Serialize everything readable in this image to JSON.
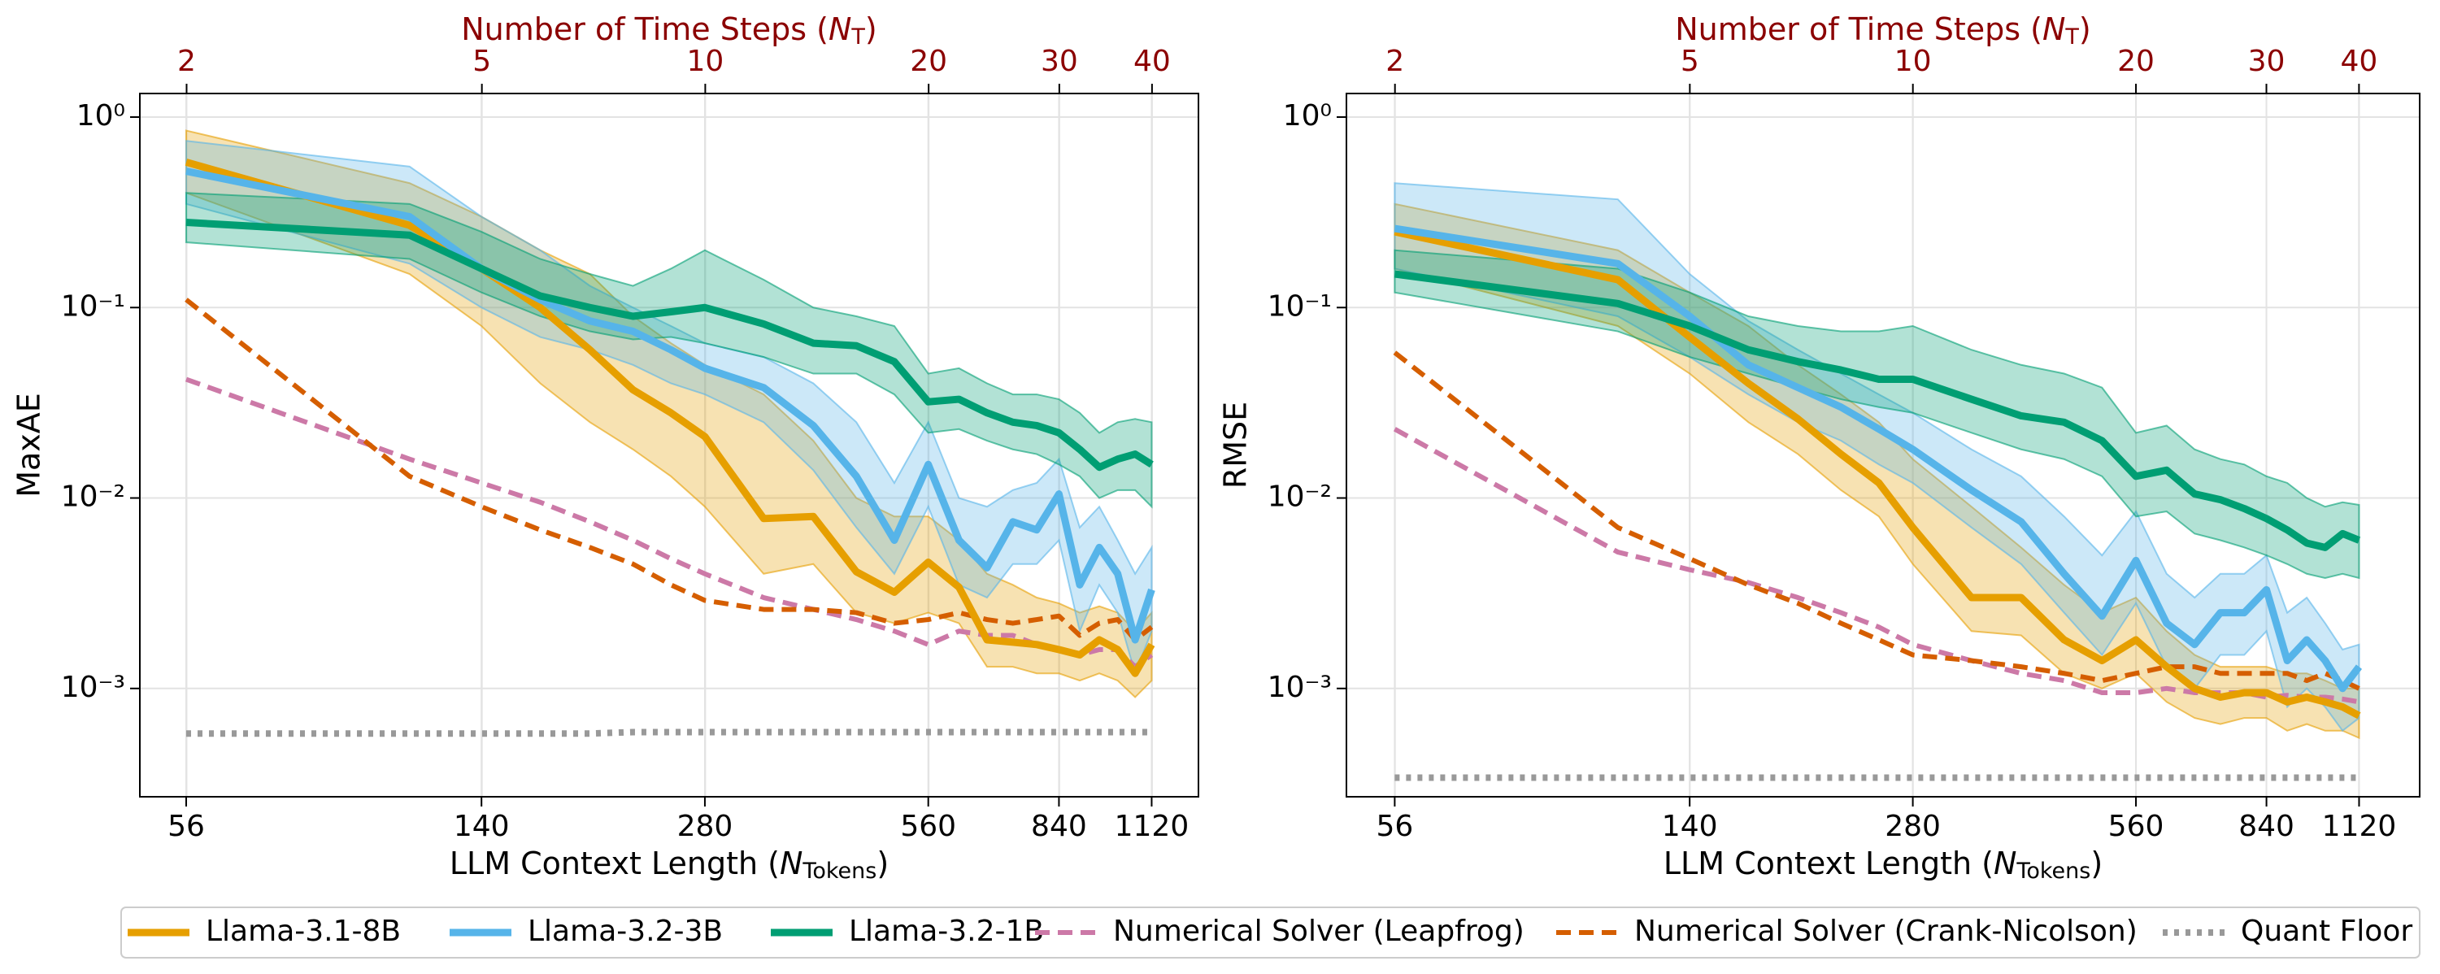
{
  "chart_data": [
    {
      "type": "line",
      "xscale": "log",
      "yscale": "log",
      "grid": true,
      "xlabel": {
        "text": "LLM Context Length (",
        "var": "N",
        "sub": "Tokens",
        "end": ")"
      },
      "x2label": {
        "text": "Number of Time Steps (",
        "var": "N",
        "sub": "T",
        "end": ")"
      },
      "ylabel": "MaxAE",
      "xlim": [
        48.5,
        1295
      ],
      "xticks": [
        56,
        140,
        280,
        560,
        840,
        1120
      ],
      "x2lim": [
        1.73,
        46.2
      ],
      "x2ticks": [
        2,
        5,
        10,
        20,
        30,
        40
      ],
      "ylim": [
        0.00027,
        1.33
      ],
      "yticks": [
        {
          "value": 0.001,
          "label": "10⁻³"
        },
        {
          "value": 0.01,
          "label": "10⁻²"
        },
        {
          "value": 0.1,
          "label": "10⁻¹"
        },
        {
          "value": 1,
          "label": "10⁰"
        }
      ],
      "legend": {
        "loc": "lower center"
      },
      "x": [
        56,
        112,
        140,
        168,
        196,
        224,
        252,
        280,
        336,
        392,
        448,
        504,
        560,
        616,
        672,
        728,
        784,
        840,
        896,
        952,
        1008,
        1064,
        1120
      ],
      "series": [
        {
          "name": "Llama-3.1-8B",
          "color": "#E69F00",
          "style": "solid",
          "values": [
            0.58,
            0.27,
            0.16,
            0.1,
            0.06,
            0.037,
            0.028,
            0.021,
            0.0078,
            0.008,
            0.0041,
            0.0032,
            0.0046,
            0.0034,
            0.0018,
            0.00175,
            0.0017,
            0.0016,
            0.0015,
            0.0018,
            0.0016,
            0.0012,
            0.0017
          ],
          "upper": [
            0.85,
            0.45,
            0.3,
            0.2,
            0.15,
            0.09,
            0.065,
            0.05,
            0.035,
            0.02,
            0.01,
            0.008,
            0.008,
            0.006,
            0.004,
            0.0035,
            0.003,
            0.0028,
            0.0025,
            0.0027,
            0.0025,
            0.002,
            0.0025
          ],
          "lower": [
            0.4,
            0.15,
            0.08,
            0.04,
            0.025,
            0.018,
            0.013,
            0.009,
            0.004,
            0.0045,
            0.0025,
            0.0022,
            0.0025,
            0.0022,
            0.0013,
            0.0013,
            0.0012,
            0.0012,
            0.0011,
            0.0012,
            0.0011,
            0.0009,
            0.0011
          ]
        },
        {
          "name": "Llama-3.2-3B",
          "color": "#56B4E9",
          "style": "solid",
          "values": [
            0.52,
            0.3,
            0.16,
            0.11,
            0.085,
            0.075,
            0.06,
            0.048,
            0.038,
            0.024,
            0.013,
            0.006,
            0.015,
            0.006,
            0.0043,
            0.0075,
            0.0068,
            0.0105,
            0.0035,
            0.0055,
            0.004,
            0.0018,
            0.0033
          ],
          "upper": [
            0.75,
            0.55,
            0.3,
            0.2,
            0.13,
            0.1,
            0.08,
            0.065,
            0.055,
            0.04,
            0.025,
            0.012,
            0.025,
            0.01,
            0.009,
            0.011,
            0.012,
            0.016,
            0.007,
            0.009,
            0.006,
            0.004,
            0.0055
          ],
          "lower": [
            0.35,
            0.17,
            0.1,
            0.07,
            0.06,
            0.05,
            0.04,
            0.035,
            0.025,
            0.014,
            0.007,
            0.004,
            0.009,
            0.0035,
            0.003,
            0.0045,
            0.0045,
            0.006,
            0.002,
            0.0035,
            0.0025,
            0.0012,
            0.002
          ]
        },
        {
          "name": "Llama-3.2-1B",
          "color": "#009E73",
          "style": "solid",
          "values": [
            0.28,
            0.24,
            0.16,
            0.115,
            0.1,
            0.09,
            0.095,
            0.1,
            0.082,
            0.065,
            0.063,
            0.052,
            0.032,
            0.033,
            0.028,
            0.025,
            0.024,
            0.022,
            0.018,
            0.0145,
            0.016,
            0.017,
            0.015
          ],
          "upper": [
            0.4,
            0.35,
            0.25,
            0.18,
            0.15,
            0.13,
            0.16,
            0.2,
            0.14,
            0.1,
            0.09,
            0.08,
            0.045,
            0.048,
            0.04,
            0.035,
            0.035,
            0.033,
            0.028,
            0.022,
            0.025,
            0.026,
            0.025
          ],
          "lower": [
            0.22,
            0.18,
            0.12,
            0.09,
            0.075,
            0.068,
            0.07,
            0.065,
            0.055,
            0.045,
            0.045,
            0.035,
            0.022,
            0.023,
            0.02,
            0.018,
            0.017,
            0.015,
            0.013,
            0.01,
            0.011,
            0.011,
            0.009
          ]
        },
        {
          "name": "Numerical Solver (Leapfrog)",
          "color": "#CC79A7",
          "style": "dashed",
          "values": [
            0.042,
            0.016,
            0.012,
            0.0095,
            0.0075,
            0.006,
            0.0048,
            0.004,
            0.003,
            0.0026,
            0.0023,
            0.002,
            0.0017,
            0.002,
            0.0019,
            0.0019,
            0.0017,
            0.0016,
            0.0015,
            0.0016,
            0.0016,
            0.0013,
            0.0015
          ]
        },
        {
          "name": "Numerical Solver (Crank-Nicolson)",
          "color": "#D55E00",
          "style": "dashed",
          "values": [
            0.11,
            0.013,
            0.009,
            0.0068,
            0.0055,
            0.0045,
            0.0035,
            0.0029,
            0.0026,
            0.0026,
            0.0025,
            0.0022,
            0.0023,
            0.0025,
            0.0023,
            0.0022,
            0.0023,
            0.0024,
            0.0019,
            0.0022,
            0.0023,
            0.0018,
            0.0021
          ]
        },
        {
          "name": "Quant Floor",
          "color": "#999999",
          "style": "dotted",
          "values": [
            0.00058,
            0.00058,
            0.00058,
            0.00058,
            0.00058,
            0.00059,
            0.00059,
            0.00059,
            0.00059,
            0.00059,
            0.00059,
            0.00059,
            0.00059,
            0.00059,
            0.00059,
            0.00059,
            0.00059,
            0.00059,
            0.00059,
            0.00059,
            0.00059,
            0.00059,
            0.00059
          ]
        }
      ]
    },
    {
      "type": "line",
      "xscale": "log",
      "yscale": "log",
      "grid": true,
      "xlabel": {
        "text": "LLM Context Length (",
        "var": "N",
        "sub": "Tokens",
        "end": ")"
      },
      "x2label": {
        "text": "Number of Time Steps (",
        "var": "N",
        "sub": "T",
        "end": ")"
      },
      "ylabel": "RMSE",
      "xlim": [
        48.2,
        1352
      ],
      "xticks": [
        56,
        140,
        280,
        560,
        840,
        1120
      ],
      "x2lim": [
        1.72,
        48.3
      ],
      "x2ticks": [
        2,
        5,
        10,
        20,
        30,
        40
      ],
      "ylim": [
        0.00027,
        1.33
      ],
      "yticks": [
        {
          "value": 0.001,
          "label": "10⁻³"
        },
        {
          "value": 0.01,
          "label": "10⁻²"
        },
        {
          "value": 0.1,
          "label": "10⁻¹"
        },
        {
          "value": 1,
          "label": "10⁰"
        }
      ],
      "x": [
        56,
        112,
        140,
        168,
        196,
        224,
        252,
        280,
        336,
        392,
        448,
        504,
        560,
        616,
        672,
        728,
        784,
        840,
        896,
        952,
        1008,
        1064,
        1120
      ],
      "series": [
        {
          "name": "Llama-3.1-8B",
          "color": "#E69F00",
          "style": "solid",
          "values": [
            0.25,
            0.14,
            0.07,
            0.04,
            0.026,
            0.017,
            0.012,
            0.007,
            0.003,
            0.003,
            0.0018,
            0.0014,
            0.0018,
            0.0013,
            0.001,
            0.0009,
            0.00095,
            0.00095,
            0.00085,
            0.0009,
            0.00085,
            0.0008,
            0.00072
          ],
          "upper": [
            0.35,
            0.2,
            0.12,
            0.08,
            0.05,
            0.035,
            0.025,
            0.016,
            0.009,
            0.0055,
            0.0035,
            0.0025,
            0.003,
            0.002,
            0.0015,
            0.0013,
            0.0013,
            0.0013,
            0.0012,
            0.0012,
            0.0011,
            0.001,
            0.001
          ],
          "lower": [
            0.16,
            0.08,
            0.045,
            0.025,
            0.017,
            0.011,
            0.008,
            0.0045,
            0.002,
            0.0019,
            0.0012,
            0.001,
            0.0012,
            0.00085,
            0.0007,
            0.00065,
            0.0007,
            0.0007,
            0.0006,
            0.00065,
            0.0006,
            0.0006,
            0.00055
          ]
        },
        {
          "name": "Llama-3.2-3B",
          "color": "#56B4E9",
          "style": "solid",
          "values": [
            0.26,
            0.17,
            0.09,
            0.05,
            0.038,
            0.03,
            0.023,
            0.018,
            0.011,
            0.0075,
            0.004,
            0.0024,
            0.0047,
            0.0022,
            0.0017,
            0.0025,
            0.0025,
            0.0033,
            0.0014,
            0.0018,
            0.0014,
            0.001,
            0.0013
          ],
          "upper": [
            0.45,
            0.37,
            0.15,
            0.085,
            0.06,
            0.045,
            0.035,
            0.028,
            0.018,
            0.013,
            0.008,
            0.005,
            0.0085,
            0.004,
            0.003,
            0.004,
            0.004,
            0.005,
            0.0025,
            0.003,
            0.0022,
            0.0016,
            0.0017
          ],
          "lower": [
            0.16,
            0.09,
            0.055,
            0.035,
            0.025,
            0.02,
            0.015,
            0.012,
            0.007,
            0.0045,
            0.0025,
            0.0015,
            0.0028,
            0.0013,
            0.001,
            0.0015,
            0.0015,
            0.002,
            0.0008,
            0.001,
            0.0008,
            0.0006,
            0.0007
          ]
        },
        {
          "name": "Llama-3.2-1B",
          "color": "#009E73",
          "style": "solid",
          "values": [
            0.15,
            0.105,
            0.08,
            0.06,
            0.052,
            0.047,
            0.042,
            0.042,
            0.033,
            0.027,
            0.025,
            0.02,
            0.013,
            0.014,
            0.0105,
            0.0098,
            0.0088,
            0.0078,
            0.0068,
            0.0058,
            0.0055,
            0.0065,
            0.006
          ],
          "upper": [
            0.2,
            0.16,
            0.12,
            0.09,
            0.08,
            0.075,
            0.075,
            0.08,
            0.06,
            0.05,
            0.045,
            0.038,
            0.022,
            0.024,
            0.018,
            0.016,
            0.015,
            0.013,
            0.012,
            0.01,
            0.009,
            0.0095,
            0.0092
          ],
          "lower": [
            0.12,
            0.075,
            0.055,
            0.045,
            0.038,
            0.033,
            0.03,
            0.028,
            0.022,
            0.018,
            0.016,
            0.013,
            0.008,
            0.0085,
            0.0065,
            0.006,
            0.0055,
            0.005,
            0.0045,
            0.004,
            0.0038,
            0.004,
            0.0038
          ]
        },
        {
          "name": "Numerical Solver (Leapfrog)",
          "color": "#CC79A7",
          "style": "dashed",
          "values": [
            0.023,
            0.0052,
            0.0042,
            0.0036,
            0.003,
            0.0025,
            0.0021,
            0.0017,
            0.0014,
            0.0012,
            0.0011,
            0.00095,
            0.00095,
            0.001,
            0.00095,
            0.00095,
            0.00095,
            0.0009,
            0.00092,
            0.0009,
            0.0009,
            0.00088,
            0.00085
          ]
        },
        {
          "name": "Numerical Solver (Crank-Nicolson)",
          "color": "#D55E00",
          "style": "dashed",
          "values": [
            0.058,
            0.007,
            0.0048,
            0.0035,
            0.0028,
            0.0022,
            0.0018,
            0.0015,
            0.0014,
            0.0013,
            0.0012,
            0.0011,
            0.0012,
            0.0013,
            0.0013,
            0.0012,
            0.0012,
            0.0012,
            0.0012,
            0.0011,
            0.0012,
            0.0011,
            0.001
          ]
        },
        {
          "name": "Quant Floor",
          "color": "#999999",
          "style": "dotted",
          "values": [
            0.00034,
            0.00034,
            0.00034,
            0.00034,
            0.00034,
            0.00034,
            0.00034,
            0.00034,
            0.00034,
            0.00034,
            0.00034,
            0.00034,
            0.00034,
            0.00034,
            0.00034,
            0.00034,
            0.00034,
            0.00034,
            0.00034,
            0.00034,
            0.00034,
            0.00034,
            0.00034
          ]
        }
      ]
    }
  ]
}
